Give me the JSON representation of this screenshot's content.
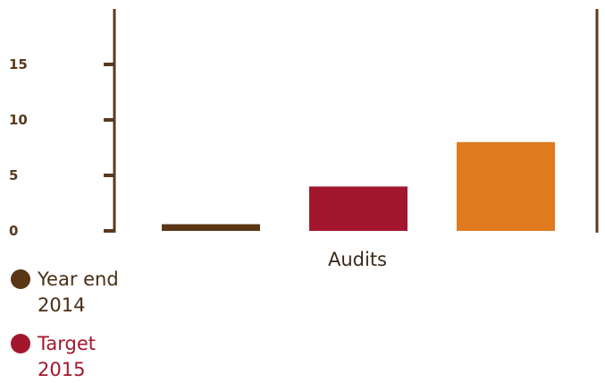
{
  "chart_data": {
    "type": "bar",
    "categories": [
      "Audits"
    ],
    "series": [
      {
        "name": "Year end\n2014",
        "values": [
          0.6
        ],
        "color": "#5a3616"
      },
      {
        "name": "Target\n2015",
        "values": [
          4
        ],
        "color": "#a3172e"
      },
      {
        "name": "",
        "values": [
          8
        ],
        "color": "#e07a1f"
      }
    ],
    "ylim": [
      0,
      20
    ],
    "yticks": [
      "0",
      "5",
      "10",
      "15"
    ],
    "ytick_values": [
      0,
      5,
      10,
      15
    ],
    "legend_position": "bottom-left",
    "grid": false,
    "axis_color": "#5a3a1e"
  }
}
